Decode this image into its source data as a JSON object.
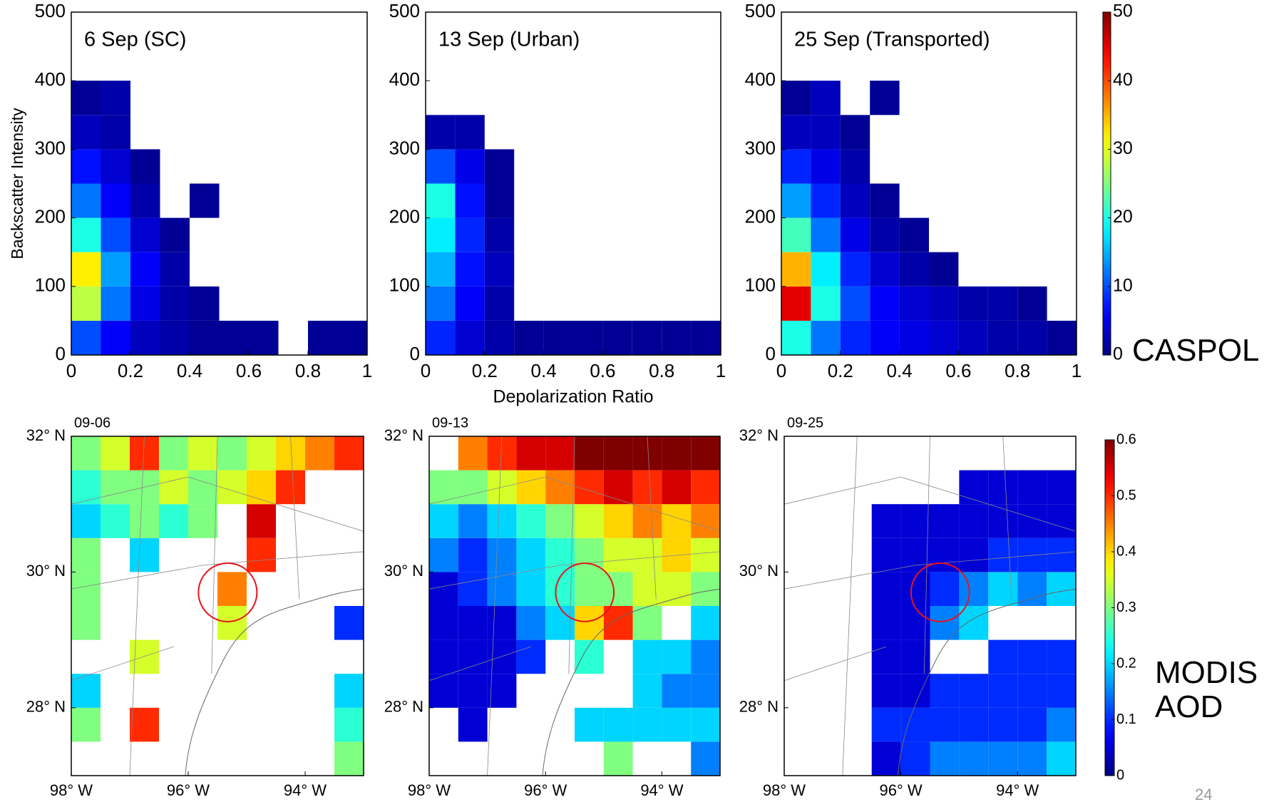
{
  "chart_data": [
    {
      "type": "heatmap",
      "title": "6 Sep (SC)",
      "ylabel": "Backscatter Intensity",
      "xlim": [
        0,
        1
      ],
      "ylim": [
        0,
        500
      ],
      "xticks": [
        0,
        0.2,
        0.4,
        0.6,
        0.8,
        1
      ],
      "yticks": [
        0,
        100,
        200,
        300,
        400,
        500
      ],
      "xbins": [
        0,
        0.1,
        0.2,
        0.3,
        0.4,
        0.5,
        0.6,
        0.7,
        0.8,
        0.9,
        1
      ],
      "ybins": [
        0,
        50,
        100,
        150,
        200,
        250,
        300,
        350,
        400
      ],
      "clim": [
        0,
        50
      ],
      "values": [
        [
          10,
          6,
          3,
          2,
          1,
          1,
          1,
          null,
          1,
          1
        ],
        [
          28,
          12,
          5,
          2,
          1,
          null,
          null,
          null,
          null,
          null
        ],
        [
          32,
          14,
          6,
          2,
          null,
          null,
          null,
          null,
          null,
          null
        ],
        [
          20,
          10,
          4,
          1,
          null,
          null,
          null,
          null,
          null,
          null
        ],
        [
          12,
          6,
          2,
          null,
          1,
          null,
          null,
          null,
          null,
          null
        ],
        [
          7,
          4,
          1,
          null,
          null,
          null,
          null,
          null,
          null,
          null
        ],
        [
          3,
          2,
          null,
          null,
          null,
          null,
          null,
          null,
          null,
          null
        ],
        [
          1,
          2,
          null,
          null,
          null,
          null,
          null,
          null,
          null,
          null
        ]
      ]
    },
    {
      "type": "heatmap",
      "title": "13 Sep (Urban)",
      "xlabel": "Depolarization Ratio",
      "xlim": [
        0,
        1
      ],
      "ylim": [
        0,
        500
      ],
      "xticks": [
        0,
        0.2,
        0.4,
        0.6,
        0.8,
        1
      ],
      "yticks": [
        0,
        100,
        200,
        300,
        400,
        500
      ],
      "xbins": [
        0,
        0.1,
        0.2,
        0.3,
        0.4,
        0.5,
        0.6,
        0.7,
        0.8,
        0.9,
        1
      ],
      "ybins": [
        0,
        50,
        100,
        150,
        200,
        250,
        300,
        350,
        400
      ],
      "clim": [
        0,
        50
      ],
      "values": [
        [
          8,
          4,
          2,
          1,
          1,
          1,
          1,
          1,
          1,
          1
        ],
        [
          12,
          6,
          2,
          null,
          null,
          null,
          null,
          null,
          null,
          null
        ],
        [
          15,
          7,
          3,
          null,
          null,
          null,
          null,
          null,
          null,
          null
        ],
        [
          18,
          8,
          2,
          null,
          null,
          null,
          null,
          null,
          null,
          null
        ],
        [
          20,
          7,
          1,
          null,
          null,
          null,
          null,
          null,
          null,
          null
        ],
        [
          10,
          5,
          1,
          null,
          null,
          null,
          null,
          null,
          null,
          null
        ],
        [
          2,
          2,
          null,
          null,
          null,
          null,
          null,
          null,
          null,
          null
        ],
        [
          null,
          null,
          null,
          null,
          null,
          null,
          null,
          null,
          null,
          null
        ]
      ]
    },
    {
      "type": "heatmap",
      "title": "25 Sep (Transported)",
      "xlim": [
        0,
        1
      ],
      "ylim": [
        0,
        500
      ],
      "xticks": [
        0,
        0.2,
        0.4,
        0.6,
        0.8,
        1
      ],
      "yticks": [
        0,
        100,
        200,
        300,
        400,
        500
      ],
      "xbins": [
        0,
        0.1,
        0.2,
        0.3,
        0.4,
        0.5,
        0.6,
        0.7,
        0.8,
        0.9,
        1
      ],
      "ybins": [
        0,
        50,
        100,
        150,
        200,
        250,
        300,
        350,
        400
      ],
      "clim": [
        0,
        50
      ],
      "colorbar": {
        "ticks": [
          0,
          10,
          20,
          30,
          40,
          50
        ],
        "label": "CASPOL"
      },
      "values": [
        [
          20,
          12,
          8,
          6,
          5,
          4,
          3,
          2,
          2,
          1
        ],
        [
          45,
          20,
          10,
          6,
          4,
          3,
          2,
          2,
          1,
          null
        ],
        [
          35,
          18,
          8,
          4,
          2,
          1,
          null,
          null,
          null,
          null
        ],
        [
          22,
          12,
          5,
          2,
          1,
          null,
          null,
          null,
          null,
          null
        ],
        [
          14,
          8,
          3,
          1,
          null,
          null,
          null,
          null,
          null,
          null
        ],
        [
          8,
          5,
          2,
          null,
          null,
          null,
          null,
          null,
          null,
          null
        ],
        [
          3,
          3,
          1,
          null,
          null,
          null,
          null,
          null,
          null,
          null
        ],
        [
          1,
          3,
          null,
          1,
          null,
          null,
          null,
          null,
          null,
          null
        ]
      ]
    },
    {
      "type": "map",
      "title": "09-06",
      "xlim": [
        -98,
        -93
      ],
      "ylim": [
        27,
        32
      ],
      "xticks": [
        {
          "value": -98,
          "label": "98° W"
        },
        {
          "value": -96,
          "label": "96° W"
        },
        {
          "value": -94,
          "label": "94° W"
        }
      ],
      "yticks": [
        {
          "value": 28,
          "label": "28° N"
        },
        {
          "value": 30,
          "label": "30° N"
        },
        {
          "value": 32,
          "label": "32° N"
        }
      ],
      "xbins": [
        -98,
        -97.5,
        -97,
        -96.5,
        -96,
        -95.5,
        -95,
        -94.5,
        -94,
        -93.5,
        -93
      ],
      "ybins": [
        27,
        27.5,
        28,
        28.5,
        29,
        29.5,
        30,
        30.5,
        31,
        31.5,
        32
      ],
      "clim": [
        0,
        0.6
      ],
      "values": [
        [
          null,
          null,
          null,
          null,
          null,
          null,
          null,
          null,
          null,
          0.3
        ],
        [
          0.3,
          null,
          0.5,
          null,
          null,
          null,
          null,
          null,
          null,
          0.25
        ],
        [
          0.2,
          null,
          null,
          null,
          null,
          null,
          null,
          null,
          null,
          0.2
        ],
        [
          null,
          null,
          0.35,
          null,
          null,
          null,
          null,
          null,
          null,
          null
        ],
        [
          0.3,
          null,
          null,
          null,
          null,
          0.35,
          null,
          null,
          null,
          0.1
        ],
        [
          0.3,
          null,
          null,
          null,
          null,
          0.45,
          null,
          null,
          null,
          null
        ],
        [
          0.3,
          null,
          0.2,
          null,
          null,
          null,
          0.5,
          null,
          null,
          null
        ],
        [
          0.2,
          0.25,
          0.3,
          0.25,
          0.3,
          null,
          0.55,
          null,
          null,
          null
        ],
        [
          0.25,
          0.3,
          0.3,
          0.35,
          0.3,
          0.35,
          0.4,
          0.5,
          null,
          null
        ],
        [
          0.3,
          0.35,
          0.5,
          0.3,
          0.35,
          0.3,
          0.35,
          0.4,
          0.45,
          0.5
        ]
      ]
    },
    {
      "type": "map",
      "title": "09-13",
      "xlim": [
        -98,
        -93
      ],
      "ylim": [
        27,
        32
      ],
      "xticks": [
        {
          "value": -98,
          "label": "98° W"
        },
        {
          "value": -96,
          "label": "96° W"
        },
        {
          "value": -94,
          "label": "94° W"
        }
      ],
      "yticks": [
        {
          "value": 28,
          "label": "28° N"
        },
        {
          "value": 30,
          "label": "30° N"
        },
        {
          "value": 32,
          "label": "32° N"
        }
      ],
      "xbins": [
        -98,
        -97.5,
        -97,
        -96.5,
        -96,
        -95.5,
        -95,
        -94.5,
        -94,
        -93.5,
        -93
      ],
      "ybins": [
        27,
        27.5,
        28,
        28.5,
        29,
        29.5,
        30,
        30.5,
        31,
        31.5,
        32
      ],
      "clim": [
        0,
        0.6
      ],
      "values": [
        [
          null,
          null,
          null,
          null,
          null,
          null,
          0.3,
          null,
          null,
          0.15
        ],
        [
          null,
          0.05,
          null,
          null,
          null,
          0.2,
          0.2,
          0.2,
          0.2,
          0.2
        ],
        [
          0.05,
          0.05,
          0.05,
          null,
          null,
          null,
          null,
          0.2,
          0.15,
          0.15
        ],
        [
          0.05,
          0.05,
          0.05,
          0.1,
          null,
          0.25,
          null,
          0.2,
          0.2,
          0.15
        ],
        [
          0.05,
          0.05,
          0.05,
          0.15,
          0.2,
          0.4,
          0.5,
          0.3,
          null,
          0.2
        ],
        [
          0.05,
          0.1,
          0.15,
          0.2,
          0.25,
          0.3,
          0.3,
          0.35,
          0.35,
          0.3
        ],
        [
          0.15,
          0.1,
          0.15,
          0.2,
          0.25,
          0.3,
          0.35,
          0.35,
          0.4,
          0.35
        ],
        [
          0.2,
          0.15,
          0.2,
          0.25,
          0.3,
          0.35,
          0.4,
          0.45,
          0.4,
          0.45
        ],
        [
          0.3,
          0.3,
          0.35,
          0.4,
          0.45,
          0.5,
          0.55,
          0.5,
          0.55,
          0.5
        ],
        [
          null,
          0.45,
          0.5,
          0.55,
          0.55,
          0.6,
          0.6,
          0.6,
          0.6,
          0.6
        ]
      ]
    },
    {
      "type": "map",
      "title": "09-25",
      "xlim": [
        -98,
        -93
      ],
      "ylim": [
        27,
        32
      ],
      "xticks": [
        {
          "value": -98,
          "label": "98° W"
        },
        {
          "value": -96,
          "label": "96° W"
        },
        {
          "value": -94,
          "label": "94° W"
        }
      ],
      "yticks": [
        {
          "value": 28,
          "label": "28° N"
        },
        {
          "value": 30,
          "label": "30° N"
        },
        {
          "value": 32,
          "label": "32° N"
        }
      ],
      "xbins": [
        -98,
        -97.5,
        -97,
        -96.5,
        -96,
        -95.5,
        -95,
        -94.5,
        -94,
        -93.5,
        -93
      ],
      "ybins": [
        27,
        27.5,
        28,
        28.5,
        29,
        29.5,
        30,
        30.5,
        31,
        31.5,
        32
      ],
      "clim": [
        0,
        0.6
      ],
      "colorbar": {
        "ticks": [
          0,
          0.1,
          0.2,
          0.3,
          0.4,
          0.5,
          0.6
        ],
        "label": "MODIS AOD"
      },
      "values": [
        [
          null,
          null,
          null,
          0.05,
          0.1,
          0.15,
          0.15,
          0.15,
          0.15,
          0.2
        ],
        [
          null,
          null,
          null,
          0.1,
          0.1,
          0.1,
          0.1,
          0.1,
          0.1,
          0.15
        ],
        [
          null,
          null,
          null,
          0.05,
          0.05,
          0.1,
          0.1,
          0.1,
          0.1,
          0.1
        ],
        [
          null,
          null,
          null,
          0.05,
          0.05,
          null,
          null,
          0.1,
          0.1,
          0.1
        ],
        [
          null,
          null,
          null,
          0.05,
          0.05,
          0.15,
          0.2,
          null,
          null,
          null
        ],
        [
          null,
          null,
          null,
          0.05,
          0.05,
          0.1,
          0.15,
          0.2,
          0.15,
          0.2
        ],
        [
          null,
          null,
          null,
          0.05,
          0.05,
          0.05,
          0.05,
          0.1,
          0.1,
          0.1
        ],
        [
          null,
          null,
          null,
          0.05,
          0.05,
          0.05,
          0.05,
          0.05,
          0.05,
          0.05
        ],
        [
          null,
          null,
          null,
          null,
          null,
          null,
          0.05,
          0.05,
          0.05,
          0.05
        ],
        [
          null,
          null,
          null,
          null,
          null,
          null,
          null,
          null,
          null,
          null
        ]
      ]
    }
  ],
  "page_number": "24"
}
